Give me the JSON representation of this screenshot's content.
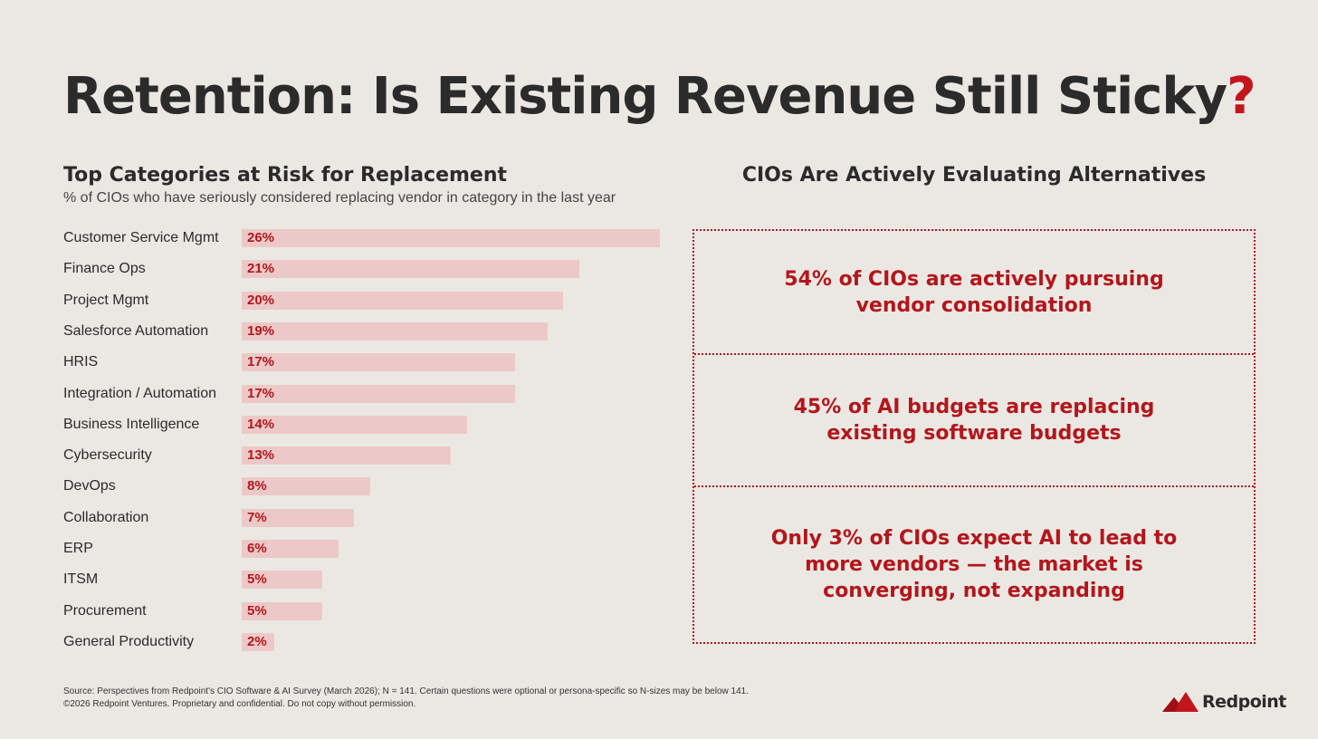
{
  "header": {
    "title": "Retention: Is Existing Revenue Still Sticky",
    "title_mark": "?"
  },
  "chart_data": {
    "type": "bar",
    "orientation": "horizontal",
    "title": "Top Categories at Risk for Replacement",
    "subtitle": "% of CIOs who have seriously considered replacing vendor in category in the last year",
    "categories": [
      "Customer Service Mgmt",
      "Finance Ops",
      "Project Mgmt",
      "Salesforce Automation",
      "HRIS",
      "Integration / Automation",
      "Business Intelligence",
      "Cybersecurity",
      "DevOps",
      "Collaboration",
      "ERP",
      "ITSM",
      "Procurement",
      "General Productivity"
    ],
    "values": [
      26,
      21,
      20,
      19,
      17,
      17,
      14,
      13,
      8,
      7,
      6,
      5,
      5,
      2
    ],
    "value_labels": [
      "26%",
      "21%",
      "20%",
      "19%",
      "17%",
      "17%",
      "14%",
      "13%",
      "8%",
      "7%",
      "6%",
      "5%",
      "5%",
      "2%"
    ],
    "xlim": [
      0,
      26
    ],
    "grid": false,
    "bar_color": "#ecc9c8",
    "label_color": "#b3161c"
  },
  "callouts": {
    "title": "CIOs Are Actively Evaluating Alternatives",
    "items": [
      "54% of CIOs are actively pursuing vendor consolidation",
      "45% of AI budgets are replacing existing software budgets",
      "Only 3% of CIOs expect AI to lead to more vendors — the market is converging, not expanding"
    ],
    "accent_color": "#b3161c"
  },
  "footer": {
    "source": "Source: Perspectives from Redpoint's CIO Software & AI Survey (March 2026); N = 141. Certain questions were optional or persona-specific so  N-sizes may be below 141.",
    "copyright": "©2026 Redpoint Ventures. Proprietary and confidential. Do not copy without permission."
  },
  "logo": {
    "text": "Redpoint",
    "icon": "mountain-logo-icon",
    "color": "#c3151c"
  }
}
